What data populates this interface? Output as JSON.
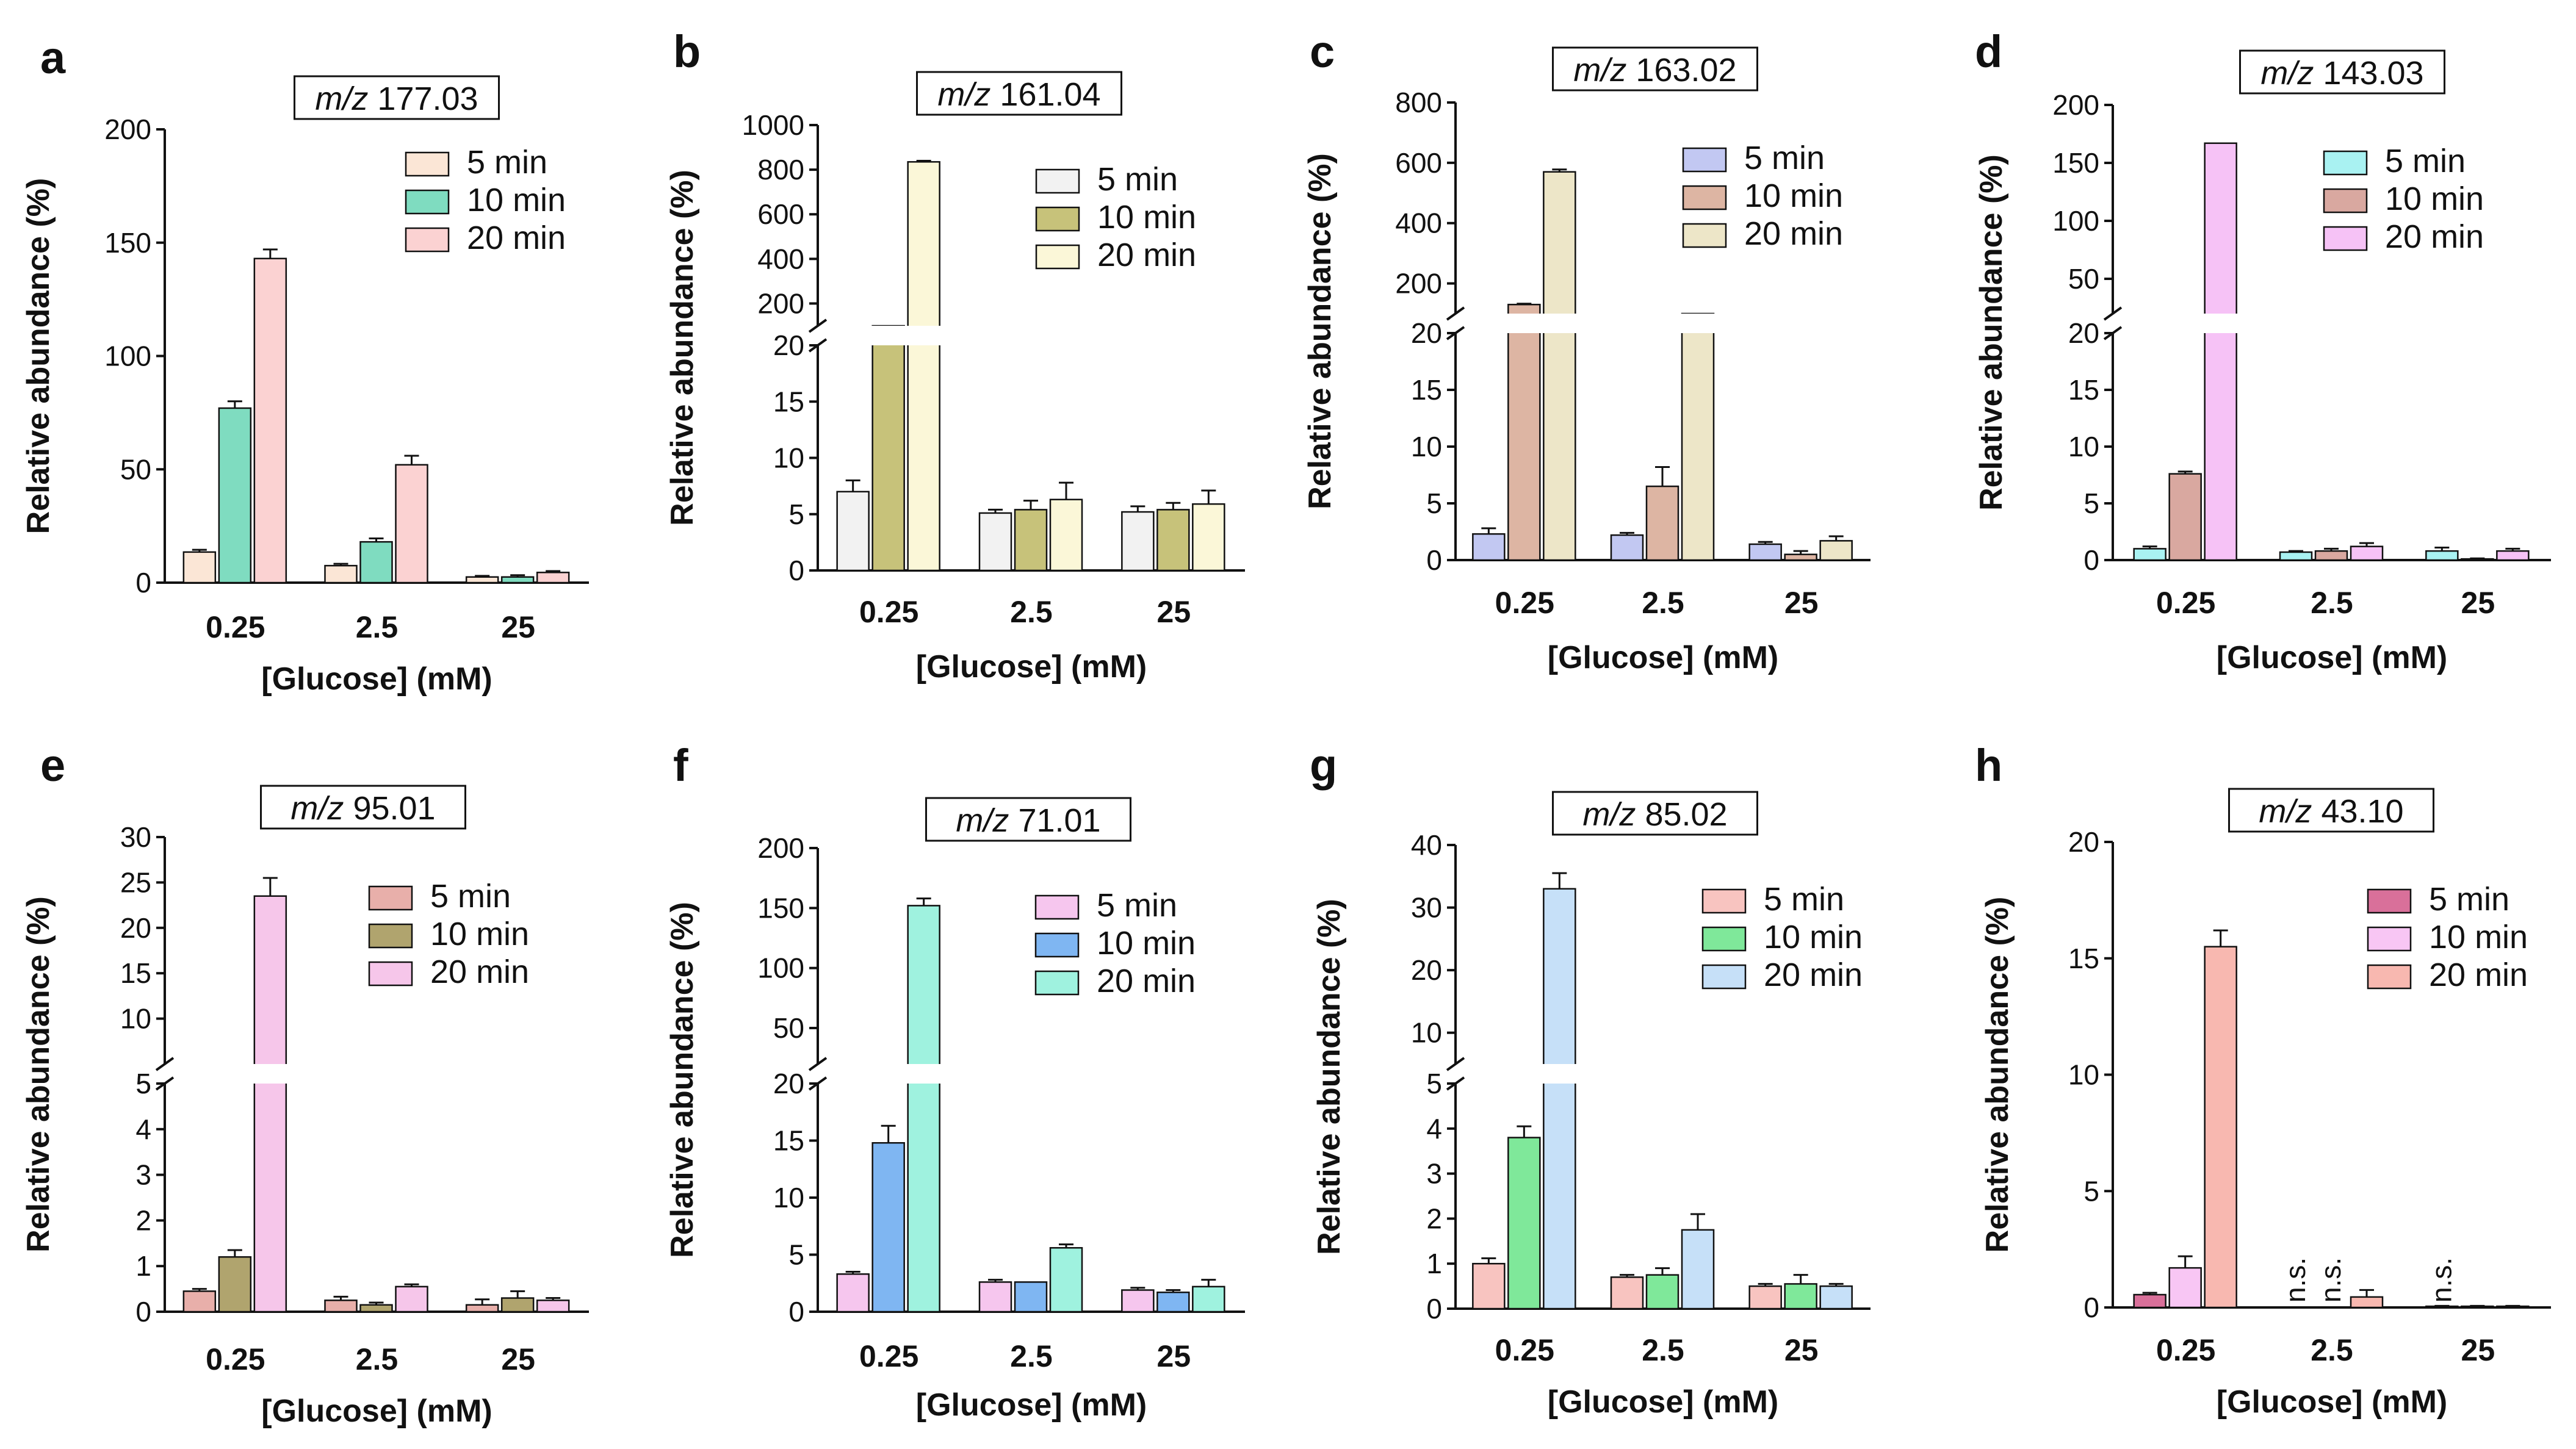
{
  "figure": {
    "x_axis_title": "[Glucose] (mM)",
    "y_axis_title": "Relative abundance (%)",
    "categories": [
      "0.25",
      "2.5",
      "25"
    ],
    "legend_labels": [
      "5 min",
      "10 min",
      "20 min"
    ]
  },
  "chart_data": [
    {
      "panel": "a",
      "type": "bar",
      "title_prefix": "m/z",
      "title_value": "177.03",
      "categories": [
        "0.25",
        "2.5",
        "25"
      ],
      "xlabel": "[Glucose] (mM)",
      "ylabel": "Relative abundance (%)",
      "ylim": [
        0,
        200
      ],
      "yticks": [
        "0",
        "50",
        "100",
        "150",
        "200"
      ],
      "series": [
        {
          "name": "5 min",
          "color": "#fbe6d6",
          "values": [
            13.5,
            7.5,
            2.5
          ],
          "errors": [
            1,
            0.8,
            0.5
          ]
        },
        {
          "name": "10 min",
          "color": "#7fdcc0",
          "values": [
            77,
            18,
            2.5
          ],
          "errors": [
            3,
            1.5,
            0.8
          ]
        },
        {
          "name": "20 min",
          "color": "#fbd2d2",
          "values": [
            143,
            52,
            4.5
          ],
          "errors": [
            4,
            4,
            0.6
          ]
        }
      ]
    },
    {
      "panel": "b",
      "type": "bar",
      "title_prefix": "m/z",
      "title_value": "161.04",
      "categories": [
        "0.25",
        "2.5",
        "25"
      ],
      "xlabel": "[Glucose] (mM)",
      "ylabel": "Relative abundance (%)",
      "lower_ylim": [
        0,
        20
      ],
      "lower_yticks": [
        "0",
        "5",
        "10",
        "15",
        "20"
      ],
      "upper_ylim": [
        100,
        1000
      ],
      "upper_yticks": [
        "200",
        "400",
        "600",
        "800",
        "1000"
      ],
      "series": [
        {
          "name": "5 min",
          "color": "#f2f2f2",
          "values": [
            7,
            5.1,
            5.2
          ],
          "errors": [
            1,
            0.3,
            0.5
          ]
        },
        {
          "name": "10 min",
          "color": "#c7c27a",
          "values": [
            100,
            5.4,
            5.4
          ],
          "errors": [
            0,
            0.8,
            0.6
          ]
        },
        {
          "name": "20 min",
          "color": "#fbf7d8",
          "values": [
            835,
            6.3,
            5.9
          ],
          "errors": [
            5,
            1.5,
            1.2
          ]
        }
      ]
    },
    {
      "panel": "c",
      "type": "bar",
      "title_prefix": "m/z",
      "title_value": "163.02",
      "categories": [
        "0.25",
        "2.5",
        "25"
      ],
      "xlabel": "[Glucose] (mM)",
      "ylabel": "Relative abundance (%)",
      "lower_ylim": [
        0,
        20
      ],
      "lower_yticks": [
        "0",
        "5",
        "10",
        "15",
        "20"
      ],
      "upper_ylim": [
        100,
        800
      ],
      "upper_yticks": [
        "200",
        "400",
        "600",
        "800"
      ],
      "series": [
        {
          "name": "5 min",
          "color": "#c2c8f2",
          "values": [
            2.3,
            2.2,
            1.4
          ],
          "errors": [
            0.5,
            0.2,
            0.2
          ]
        },
        {
          "name": "10 min",
          "color": "#ddb5a3",
          "values": [
            130,
            6.5,
            0.5
          ],
          "errors": [
            3,
            1.7,
            0.3
          ]
        },
        {
          "name": "20 min",
          "color": "#ede6c8",
          "values": [
            570,
            100,
            1.7
          ],
          "errors": [
            8,
            0,
            0.4
          ]
        }
      ]
    },
    {
      "panel": "d",
      "type": "bar",
      "title_prefix": "m/z",
      "title_value": "143.03",
      "categories": [
        "0.25",
        "2.5",
        "25"
      ],
      "xlabel": "[Glucose] (mM)",
      "ylabel": "Relative abundance (%)",
      "lower_ylim": [
        0,
        20
      ],
      "lower_yticks": [
        "0",
        "5",
        "10",
        "15",
        "20"
      ],
      "upper_ylim": [
        20,
        200
      ],
      "upper_yticks": [
        "50",
        "100",
        "150",
        "200"
      ],
      "series": [
        {
          "name": "5 min",
          "color": "#a9f2f2",
          "values": [
            1,
            0.7,
            0.8
          ],
          "errors": [
            0.2,
            0.1,
            0.3
          ]
        },
        {
          "name": "10 min",
          "color": "#d9a8a0",
          "values": [
            7.6,
            0.8,
            0.1
          ],
          "errors": [
            0.2,
            0.2,
            0.05
          ]
        },
        {
          "name": "20 min",
          "color": "#f6c2f6",
          "values": [
            167,
            1.2,
            0.8
          ],
          "errors": [
            0,
            0.3,
            0.2
          ]
        }
      ]
    },
    {
      "panel": "e",
      "type": "bar",
      "title_prefix": "m/z",
      "title_value": "95.01",
      "categories": [
        "0.25",
        "2.5",
        "25"
      ],
      "xlabel": "[Glucose] (mM)",
      "ylabel": "Relative abundance (%)",
      "lower_ylim": [
        0,
        5
      ],
      "lower_yticks": [
        "0",
        "1",
        "2",
        "3",
        "4",
        "5"
      ],
      "upper_ylim": [
        5,
        30
      ],
      "upper_yticks": [
        "5",
        "10",
        "15",
        "20",
        "25",
        "30"
      ],
      "series": [
        {
          "name": "5 min",
          "color": "#e8afaa",
          "values": [
            0.45,
            0.25,
            0.15
          ],
          "errors": [
            0.05,
            0.08,
            0.12
          ]
        },
        {
          "name": "10 min",
          "color": "#b0a46e",
          "values": [
            1.2,
            0.15,
            0.3
          ],
          "errors": [
            0.15,
            0.05,
            0.15
          ]
        },
        {
          "name": "20 min",
          "color": "#f6c6ea",
          "values": [
            23.5,
            0.55,
            0.25
          ],
          "errors": [
            2,
            0.05,
            0.05
          ]
        }
      ]
    },
    {
      "panel": "f",
      "type": "bar",
      "title_prefix": "m/z",
      "title_value": "71.01",
      "categories": [
        "0.25",
        "2.5",
        "25"
      ],
      "xlabel": "[Glucose] (mM)",
      "ylabel": "Relative abundance (%)",
      "lower_ylim": [
        0,
        20
      ],
      "lower_yticks": [
        "0",
        "5",
        "10",
        "15",
        "20"
      ],
      "upper_ylim": [
        20,
        200
      ],
      "upper_yticks": [
        "50",
        "100",
        "150",
        "200"
      ],
      "series": [
        {
          "name": "5 min",
          "color": "#f6c6ee",
          "values": [
            3.3,
            2.6,
            1.9
          ],
          "errors": [
            0.2,
            0.2,
            0.2
          ]
        },
        {
          "name": "10 min",
          "color": "#7fb6f2",
          "values": [
            14.8,
            2.6,
            1.7
          ],
          "errors": [
            1.5,
            0,
            0.2
          ]
        },
        {
          "name": "20 min",
          "color": "#9ff2df",
          "values": [
            152,
            5.6,
            2.2
          ],
          "errors": [
            6,
            0.3,
            0.6
          ]
        }
      ]
    },
    {
      "panel": "g",
      "type": "bar",
      "title_prefix": "m/z",
      "title_value": "85.02",
      "categories": [
        "0.25",
        "2.5",
        "25"
      ],
      "xlabel": "[Glucose] (mM)",
      "ylabel": "Relative abundance (%)",
      "lower_ylim": [
        0,
        5
      ],
      "lower_yticks": [
        "0",
        "1",
        "2",
        "3",
        "4",
        "5"
      ],
      "upper_ylim": [
        5,
        40
      ],
      "upper_yticks": [
        "10",
        "20",
        "30",
        "40"
      ],
      "series": [
        {
          "name": "5 min",
          "color": "#f8c4c0",
          "values": [
            1,
            0.7,
            0.5
          ],
          "errors": [
            0.12,
            0.05,
            0.05
          ]
        },
        {
          "name": "10 min",
          "color": "#7fe89a",
          "values": [
            3.8,
            0.75,
            0.55
          ],
          "errors": [
            0.25,
            0.15,
            0.2
          ]
        },
        {
          "name": "20 min",
          "color": "#c6e0f8",
          "values": [
            33,
            1.75,
            0.5
          ],
          "errors": [
            2.5,
            0.35,
            0.05
          ]
        }
      ]
    },
    {
      "panel": "h",
      "type": "bar",
      "title_prefix": "m/z",
      "title_value": "43.10",
      "categories": [
        "0.25",
        "2.5",
        "25"
      ],
      "xlabel": "[Glucose] (mM)",
      "ylabel": "Relative abundance (%)",
      "ylim": [
        0,
        20
      ],
      "yticks": [
        "0",
        "5",
        "10",
        "15",
        "20"
      ],
      "series": [
        {
          "name": "5 min",
          "color": "#d9709a",
          "values": [
            0.55,
            0,
            0.05
          ],
          "errors": [
            0.08,
            0,
            0.02
          ]
        },
        {
          "name": "10 min",
          "color": "#f8c6f4",
          "values": [
            1.7,
            0,
            0.05
          ],
          "errors": [
            0.5,
            0,
            0.02
          ]
        },
        {
          "name": "20 min",
          "color": "#f8b8b0",
          "values": [
            15.5,
            0.45,
            0.05
          ],
          "errors": [
            0.7,
            0.3,
            0.02
          ]
        }
      ],
      "annotations": [
        {
          "text": "n.s.",
          "category": "2.5",
          "series": "5 min"
        },
        {
          "text": "n.s.",
          "category": "2.5",
          "series": "10 min"
        },
        {
          "text": "n.s.",
          "category": "25",
          "series": "5 min"
        }
      ]
    }
  ]
}
